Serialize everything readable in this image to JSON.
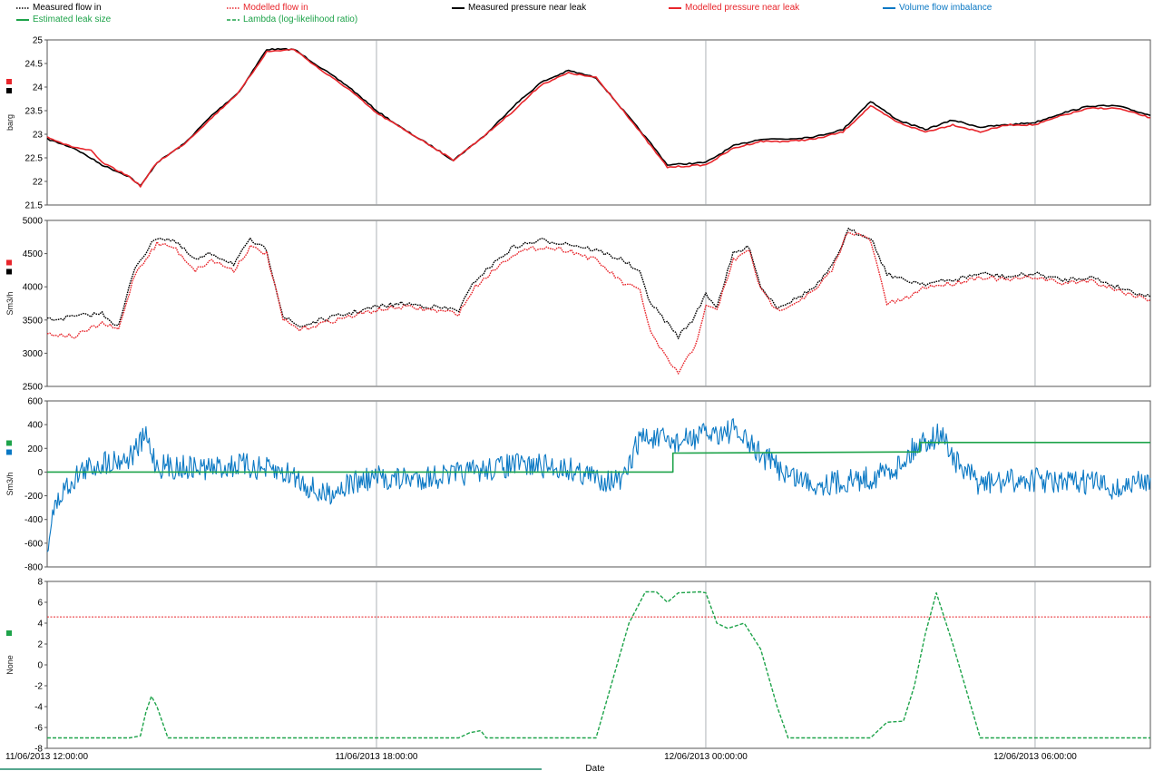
{
  "legend": [
    {
      "label": "Measured flow in",
      "color": "#000000",
      "style": "dotted"
    },
    {
      "label": "Modelled flow in",
      "color": "#e8252b",
      "style": "dotted"
    },
    {
      "label": "Measured pressure near leak",
      "color": "#000000",
      "style": "solid"
    },
    {
      "label": "Modelled pressure near leak",
      "color": "#e8252b",
      "style": "solid"
    },
    {
      "label": "Volume flow imbalance",
      "color": "#0a78c4",
      "style": "solid"
    },
    {
      "label": "Estimated leak size",
      "color": "#1ea34a",
      "style": "solid"
    },
    {
      "label": "Lambda (log-likelihood ratio)",
      "color": "#1ea34a",
      "style": "dashed"
    }
  ],
  "colors": {
    "black": "#000000",
    "red": "#e8252b",
    "blue": "#0a78c4",
    "green": "#1ea34a",
    "grid": "#9aa0a6"
  },
  "x_axis": {
    "label": "Date",
    "ticks": [
      "11/06/2013 12:00:00",
      "11/06/2013 18:00:00",
      "12/06/2013 00:00:00",
      "12/06/2013 06:00:00"
    ],
    "tick_hours": [
      0,
      6,
      12,
      18
    ],
    "range_hours": [
      0,
      20.1
    ]
  },
  "chart_data": [
    {
      "type": "line",
      "ylabel": "barg",
      "ylim": [
        21.5,
        25
      ],
      "yticks": [
        "25",
        "24.5",
        "24",
        "23.5",
        "23",
        "22.5",
        "22",
        "21.5"
      ],
      "grid": "vertical",
      "series": [
        {
          "name": "Measured pressure near leak",
          "color": "#000000",
          "style": "solid",
          "x": [
            0,
            0.5,
            1,
            1.5,
            1.7,
            2,
            2.5,
            3,
            3.5,
            4,
            4.5,
            5,
            5.5,
            6,
            6.5,
            7,
            7.4,
            8,
            8.5,
            9,
            9.5,
            10,
            10.5,
            11,
            11.3,
            12,
            12.5,
            13,
            13.5,
            14,
            14.5,
            15,
            15.5,
            16,
            16.5,
            17,
            17.5,
            18,
            18.5,
            19,
            19.5,
            20.1
          ],
          "y": [
            22.9,
            22.7,
            22.35,
            22.1,
            21.9,
            22.4,
            22.8,
            23.4,
            23.9,
            24.8,
            24.8,
            24.4,
            24.0,
            23.5,
            23.1,
            22.75,
            22.45,
            23.0,
            23.6,
            24.1,
            24.35,
            24.2,
            23.5,
            22.8,
            22.35,
            22.4,
            22.75,
            22.9,
            22.9,
            22.95,
            23.1,
            23.7,
            23.3,
            23.1,
            23.3,
            23.15,
            23.2,
            23.25,
            23.45,
            23.6,
            23.6,
            23.4
          ]
        },
        {
          "name": "Modelled pressure near leak",
          "color": "#e8252b",
          "style": "solid",
          "x": [
            0,
            0.4,
            0.8,
            1,
            1.5,
            1.7,
            2,
            2.5,
            3,
            3.5,
            4,
            4.5,
            5,
            5.5,
            6,
            6.5,
            7,
            7.4,
            8,
            8.5,
            9,
            9.5,
            10,
            10.5,
            11,
            11.3,
            12,
            12.5,
            13,
            13.5,
            14,
            14.5,
            15,
            15.5,
            16,
            16.5,
            17,
            17.5,
            18,
            18.5,
            19,
            19.5,
            20.1
          ],
          "y": [
            22.95,
            22.75,
            22.65,
            22.4,
            22.1,
            21.9,
            22.4,
            22.8,
            23.35,
            23.9,
            24.75,
            24.8,
            24.35,
            23.95,
            23.45,
            23.1,
            22.75,
            22.45,
            23.0,
            23.5,
            24.05,
            24.3,
            24.2,
            23.5,
            22.75,
            22.3,
            22.35,
            22.7,
            22.85,
            22.85,
            22.9,
            23.05,
            23.6,
            23.25,
            23.05,
            23.2,
            23.05,
            23.2,
            23.2,
            23.4,
            23.55,
            23.55,
            23.35
          ]
        }
      ]
    },
    {
      "type": "line",
      "ylabel": "Sm3/h",
      "ylim": [
        2500,
        5000
      ],
      "yticks": [
        "5000",
        "4500",
        "4000",
        "3500",
        "3000",
        "2500"
      ],
      "grid": "vertical",
      "series": [
        {
          "name": "Measured flow in",
          "color": "#000000",
          "style": "dotted",
          "x": [
            0,
            0.5,
            1,
            1.3,
            1.6,
            2,
            2.3,
            2.7,
            3,
            3.4,
            3.7,
            4,
            4.3,
            4.6,
            5,
            5.5,
            6,
            6.5,
            7,
            7.5,
            7.8,
            8.2,
            8.5,
            9,
            9.5,
            10,
            10.5,
            10.8,
            11,
            11.3,
            11.5,
            11.8,
            12,
            12.2,
            12.5,
            12.8,
            13,
            13.3,
            13.6,
            14,
            14.3,
            14.6,
            15,
            15.3,
            15.6,
            16,
            16.5,
            17,
            17.5,
            18,
            18.5,
            19,
            19.5,
            20.1
          ],
          "y": [
            3500,
            3550,
            3600,
            3400,
            4300,
            4750,
            4700,
            4400,
            4500,
            4350,
            4700,
            4550,
            3550,
            3400,
            3500,
            3600,
            3700,
            3750,
            3700,
            3650,
            4100,
            4400,
            4600,
            4700,
            4650,
            4550,
            4400,
            4200,
            3750,
            3450,
            3250,
            3550,
            3900,
            3700,
            4500,
            4600,
            4000,
            3700,
            3800,
            4000,
            4300,
            4850,
            4750,
            4200,
            4100,
            4050,
            4100,
            4200,
            4150,
            4200,
            4100,
            4150,
            4000,
            3850
          ]
        },
        {
          "name": "Modelled flow in",
          "color": "#e8252b",
          "style": "dotted",
          "x": [
            0,
            0.5,
            1,
            1.3,
            1.6,
            2,
            2.3,
            2.7,
            3,
            3.4,
            3.7,
            4,
            4.3,
            4.6,
            5,
            5.5,
            6,
            6.5,
            7,
            7.5,
            7.8,
            8.2,
            8.5,
            9,
            9.5,
            10,
            10.5,
            10.8,
            11,
            11.3,
            11.5,
            11.8,
            12,
            12.2,
            12.5,
            12.8,
            13,
            13.3,
            13.6,
            14,
            14.3,
            14.6,
            15,
            15.3,
            15.6,
            16,
            16.5,
            17,
            17.5,
            18,
            18.5,
            19,
            19.5,
            20.1
          ],
          "y": [
            3300,
            3250,
            3450,
            3350,
            4200,
            4650,
            4600,
            4250,
            4400,
            4250,
            4600,
            4500,
            3500,
            3350,
            3450,
            3550,
            3650,
            3700,
            3650,
            3600,
            4000,
            4300,
            4500,
            4600,
            4550,
            4400,
            4050,
            3950,
            3300,
            2900,
            2700,
            3100,
            3700,
            3650,
            4400,
            4550,
            3950,
            3650,
            3750,
            3950,
            4250,
            4850,
            4700,
            3750,
            3800,
            4000,
            4050,
            4150,
            4100,
            4150,
            4050,
            4100,
            3950,
            3800
          ]
        }
      ]
    },
    {
      "type": "line",
      "ylabel": "Sm3/h",
      "ylim": [
        -800,
        600
      ],
      "yticks": [
        "600",
        "400",
        "200",
        "0",
        "-200",
        "-400",
        "-600",
        "-800"
      ],
      "grid": "vertical",
      "series": [
        {
          "name": "Volume flow imbalance",
          "color": "#0a78c4",
          "style": "solid",
          "x": [
            0,
            0.1,
            0.3,
            0.6,
            1,
            1.5,
            1.8,
            2,
            2.5,
            3,
            3.5,
            4,
            4.5,
            5,
            5.5,
            6,
            6.5,
            7,
            7.5,
            8,
            8.5,
            9,
            9.5,
            10,
            10.5,
            10.8,
            11,
            11.5,
            12,
            12.5,
            13,
            13.5,
            14,
            14.5,
            15,
            15.5,
            15.9,
            16.3,
            16.6,
            17,
            17.5,
            18,
            18.5,
            19,
            19.5,
            20.1
          ],
          "y": [
            -650,
            -350,
            -150,
            0,
            80,
            120,
            300,
            50,
            40,
            30,
            60,
            20,
            -30,
            -200,
            -100,
            -50,
            -60,
            -40,
            -20,
            20,
            60,
            50,
            30,
            -50,
            -80,
            300,
            280,
            250,
            320,
            350,
            150,
            -20,
            -100,
            -80,
            -50,
            50,
            250,
            320,
            50,
            -100,
            -80,
            -60,
            -100,
            -80,
            -150,
            -50
          ]
        },
        {
          "name": "Estimated leak size",
          "color": "#1ea34a",
          "style": "solid",
          "x": [
            0,
            10.78,
            10.78,
            11.4,
            11.4,
            15.9,
            15.9,
            20.1
          ],
          "y": [
            0,
            0,
            0,
            0,
            160,
            170,
            250,
            250
          ]
        }
      ]
    },
    {
      "type": "line",
      "ylabel": "None",
      "ylim": [
        -8,
        8
      ],
      "yticks": [
        "8",
        "6",
        "4",
        "2",
        "0",
        "-2",
        "-4",
        "-6",
        "-8"
      ],
      "grid": "vertical",
      "threshold": {
        "y": 4.6,
        "color": "#e8252b"
      },
      "series": [
        {
          "name": "Lambda (log-likelihood ratio)",
          "color": "#1ea34a",
          "style": "dashed",
          "x": [
            0,
            1.5,
            1.7,
            1.8,
            1.9,
            2.0,
            2.2,
            3,
            4,
            5,
            6,
            7,
            7.5,
            7.7,
            7.9,
            8,
            9,
            10,
            10.3,
            10.6,
            10.9,
            11.1,
            11.3,
            11.5,
            11.9,
            12,
            12.2,
            12.4,
            12.7,
            13,
            13.3,
            13.5,
            14,
            14.5,
            15,
            15.1,
            15.3,
            15.6,
            15.8,
            16,
            16.2,
            16.5,
            17,
            18,
            20.1
          ],
          "y": [
            -7,
            -7,
            -6.8,
            -4.5,
            -3,
            -4,
            -7,
            -7,
            -7,
            -7,
            -7,
            -7,
            -7,
            -6.5,
            -6.3,
            -7,
            -7,
            -7,
            -1.5,
            4,
            7,
            7,
            6,
            6.9,
            7,
            6.9,
            4,
            3.5,
            4,
            1.5,
            -4,
            -7,
            -7,
            -7,
            -7,
            -6.5,
            -5.5,
            -5.4,
            -2,
            3,
            6.9,
            2,
            -7,
            -7,
            -7
          ]
        }
      ]
    }
  ]
}
